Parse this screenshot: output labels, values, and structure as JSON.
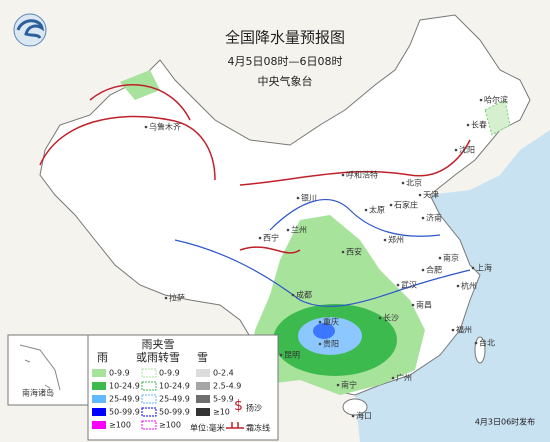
{
  "header": {
    "title": "全国降水量预报图",
    "period": "4月5日08时—6日08时",
    "issuer": "中央气象台"
  },
  "cities": [
    "哈尔滨",
    "长春",
    "沈阳",
    "乌鲁木齐",
    "呼和浩特",
    "北京",
    "天津",
    "石家庄",
    "太原",
    "济南",
    "银川",
    "兰州",
    "西宁",
    "西安",
    "郑州",
    "合肥",
    "南京",
    "上海",
    "杭州",
    "武汉",
    "长沙",
    "南昌",
    "福州",
    "台北",
    "成都",
    "重庆",
    "贵阳",
    "昆明",
    "南宁",
    "广州",
    "海口",
    "拉萨"
  ],
  "inset_label": "南海诸岛",
  "legend": {
    "rain": {
      "label": "雨",
      "items": [
        {
          "text": "0-9.9",
          "color": "#a8e39c"
        },
        {
          "text": "10-24.9",
          "color": "#3dba4e"
        },
        {
          "text": "25-49.9",
          "color": "#61b8ff"
        },
        {
          "text": "50-99.9",
          "color": "#0000fe"
        },
        {
          "text": "≥100",
          "color": "#fa00fa"
        }
      ]
    },
    "mixed": {
      "label": [
        "雨夹雪",
        "或雨转雪"
      ],
      "items": [
        {
          "text": "0-9.9",
          "color": "#a8e39c"
        },
        {
          "text": "10-24.9",
          "color": "#3dba4e"
        },
        {
          "text": "25-49.9",
          "color": "#61b8ff"
        },
        {
          "text": "50-99.9",
          "color": "#0000fe"
        },
        {
          "text": "≥100",
          "color": "#fa00fa"
        }
      ]
    },
    "snow": {
      "label": "雪",
      "items": [
        {
          "text": "0-2.4",
          "color": "#dcdcdc"
        },
        {
          "text": "2.5-4.9",
          "color": "#a6a6a6"
        },
        {
          "text": "5-9.9",
          "color": "#6e6e6e"
        },
        {
          "text": "≥10",
          "color": "#333333"
        }
      ]
    },
    "dust": "扬沙",
    "unit": "单位:毫米",
    "frost": "霜冻线"
  },
  "footer": "4月3日06时发布"
}
